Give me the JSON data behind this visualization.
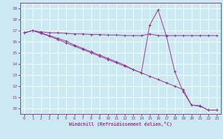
{
  "xlabel": "Windchill (Refroidissement éolien,°C)",
  "background_color": "#cce8f0",
  "line_color": "#993399",
  "grid_color": "#ffffff",
  "xlim": [
    -0.5,
    23.5
  ],
  "ylim": [
    9.5,
    19.5
  ],
  "xticks": [
    0,
    1,
    2,
    3,
    4,
    5,
    6,
    7,
    8,
    9,
    10,
    11,
    12,
    13,
    14,
    15,
    16,
    17,
    18,
    19,
    20,
    21,
    22,
    23
  ],
  "yticks": [
    10,
    11,
    12,
    13,
    14,
    15,
    16,
    17,
    18,
    19
  ],
  "line1_x": [
    0,
    1,
    2,
    3,
    4,
    5,
    6,
    7,
    8,
    9,
    10,
    11,
    12,
    13,
    14,
    15,
    16,
    17,
    18,
    19,
    20,
    21,
    22,
    23
  ],
  "line1_y": [
    16.8,
    17.0,
    16.9,
    16.8,
    16.8,
    16.75,
    16.7,
    16.7,
    16.65,
    16.65,
    16.6,
    16.6,
    16.55,
    16.55,
    16.55,
    16.7,
    16.55,
    16.55,
    16.55,
    16.55,
    16.55,
    16.55,
    16.55,
    16.55
  ],
  "line2_x": [
    0,
    1,
    2,
    3,
    4,
    5,
    6,
    7,
    8,
    9,
    10,
    11,
    12,
    13,
    14,
    15,
    16,
    17,
    18,
    19,
    20,
    21,
    22,
    23
  ],
  "line2_y": [
    16.8,
    17.0,
    16.8,
    16.55,
    16.3,
    16.05,
    15.7,
    15.4,
    15.1,
    14.8,
    14.5,
    14.2,
    13.9,
    13.5,
    13.2,
    17.5,
    18.85,
    16.5,
    13.3,
    11.5,
    10.3,
    10.25,
    9.85,
    9.85
  ],
  "line3_x": [
    0,
    1,
    2,
    3,
    4,
    5,
    6,
    7,
    8,
    9,
    10,
    11,
    12,
    13,
    14,
    15,
    16,
    17,
    18,
    19,
    20,
    21,
    22,
    23
  ],
  "line3_y": [
    16.8,
    17.0,
    16.75,
    16.5,
    16.2,
    15.9,
    15.6,
    15.3,
    15.0,
    14.7,
    14.4,
    14.1,
    13.8,
    13.5,
    13.2,
    12.9,
    12.6,
    12.3,
    12.0,
    11.7,
    10.3,
    10.2,
    9.85,
    9.85
  ]
}
